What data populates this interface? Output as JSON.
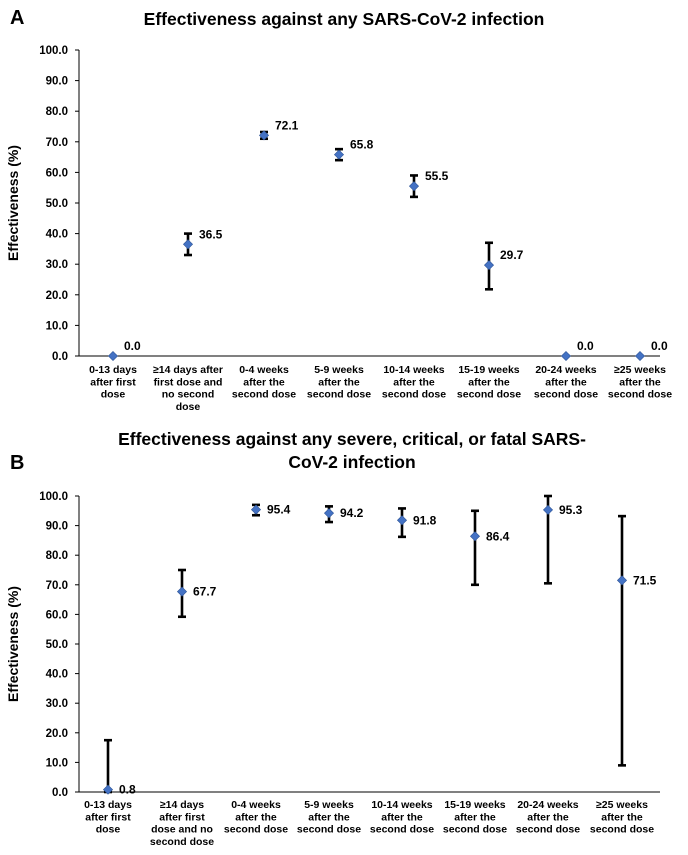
{
  "chart_data": [
    {
      "panel": "A",
      "type": "scatter",
      "title": [
        "Effectiveness against any SARS-CoV-2 infection"
      ],
      "ylabel": "Effectiveness (%)",
      "xlabel": "",
      "ylim": [
        0,
        100
      ],
      "yticks": [
        "0.0",
        "10.0",
        "20.0",
        "30.0",
        "40.0",
        "50.0",
        "60.0",
        "70.0",
        "80.0",
        "90.0",
        "100.0"
      ],
      "categories": [
        [
          "0-13 days",
          "after first",
          "dose"
        ],
        [
          "≥14 days after",
          "first dose and",
          "no second",
          "dose"
        ],
        [
          "0-4 weeks",
          "after the",
          "second dose"
        ],
        [
          "5-9 weeks",
          "after the",
          "second dose"
        ],
        [
          "10-14 weeks",
          "after the",
          "second dose"
        ],
        [
          "15-19 weeks",
          "after the",
          "second dose"
        ],
        [
          "20-24 weeks",
          "after the",
          "second dose"
        ],
        [
          "≥25 weeks",
          "after the",
          "second dose"
        ]
      ],
      "values": [
        0.0,
        36.5,
        72.1,
        65.8,
        55.5,
        29.7,
        0.0,
        0.0
      ],
      "labels": [
        "0.0",
        "36.5",
        "72.1",
        "65.8",
        "55.5",
        "29.7",
        "0.0",
        "0.0"
      ],
      "ci_low": [
        null,
        33.0,
        71.0,
        64.0,
        52.0,
        21.8,
        null,
        null
      ],
      "ci_high": [
        null,
        40.0,
        73.2,
        67.6,
        59.0,
        37.0,
        null,
        null
      ],
      "marker_color": "#4472c4",
      "grid": false
    },
    {
      "panel": "B",
      "type": "scatter",
      "title": [
        "Effectiveness against any severe, critical, or fatal SARS-",
        "CoV-2 infection"
      ],
      "ylabel": "Effectiveness (%)",
      "xlabel": "",
      "ylim": [
        0,
        100
      ],
      "yticks": [
        "0.0",
        "10.0",
        "20.0",
        "30.0",
        "40.0",
        "50.0",
        "60.0",
        "70.0",
        "80.0",
        "90.0",
        "100.0"
      ],
      "categories": [
        [
          "0-13 days",
          "after first",
          "dose"
        ],
        [
          "≥14 days",
          "after first",
          "dose and no",
          "second dose"
        ],
        [
          "0-4 weeks",
          "after the",
          "second dose"
        ],
        [
          "5-9 weeks",
          "after the",
          "second dose"
        ],
        [
          "10-14 weeks",
          "after the",
          "second dose"
        ],
        [
          "15-19 weeks",
          "after the",
          "second dose"
        ],
        [
          "20-24 weeks",
          "after the",
          "second dose"
        ],
        [
          "≥25 weeks",
          "after the",
          "second dose"
        ]
      ],
      "values": [
        0.8,
        67.7,
        95.4,
        94.2,
        91.8,
        86.4,
        95.3,
        71.5
      ],
      "labels": [
        "0.8",
        "67.7",
        "95.4",
        "94.2",
        "91.8",
        "86.4",
        "95.3",
        "71.5"
      ],
      "ci_low": [
        0.0,
        59.2,
        93.5,
        91.2,
        86.2,
        70.0,
        70.5,
        9.0
      ],
      "ci_high": [
        17.5,
        75.0,
        97.0,
        96.5,
        95.8,
        95.0,
        100.0,
        93.2
      ],
      "marker_color": "#4472c4",
      "grid": false
    }
  ]
}
